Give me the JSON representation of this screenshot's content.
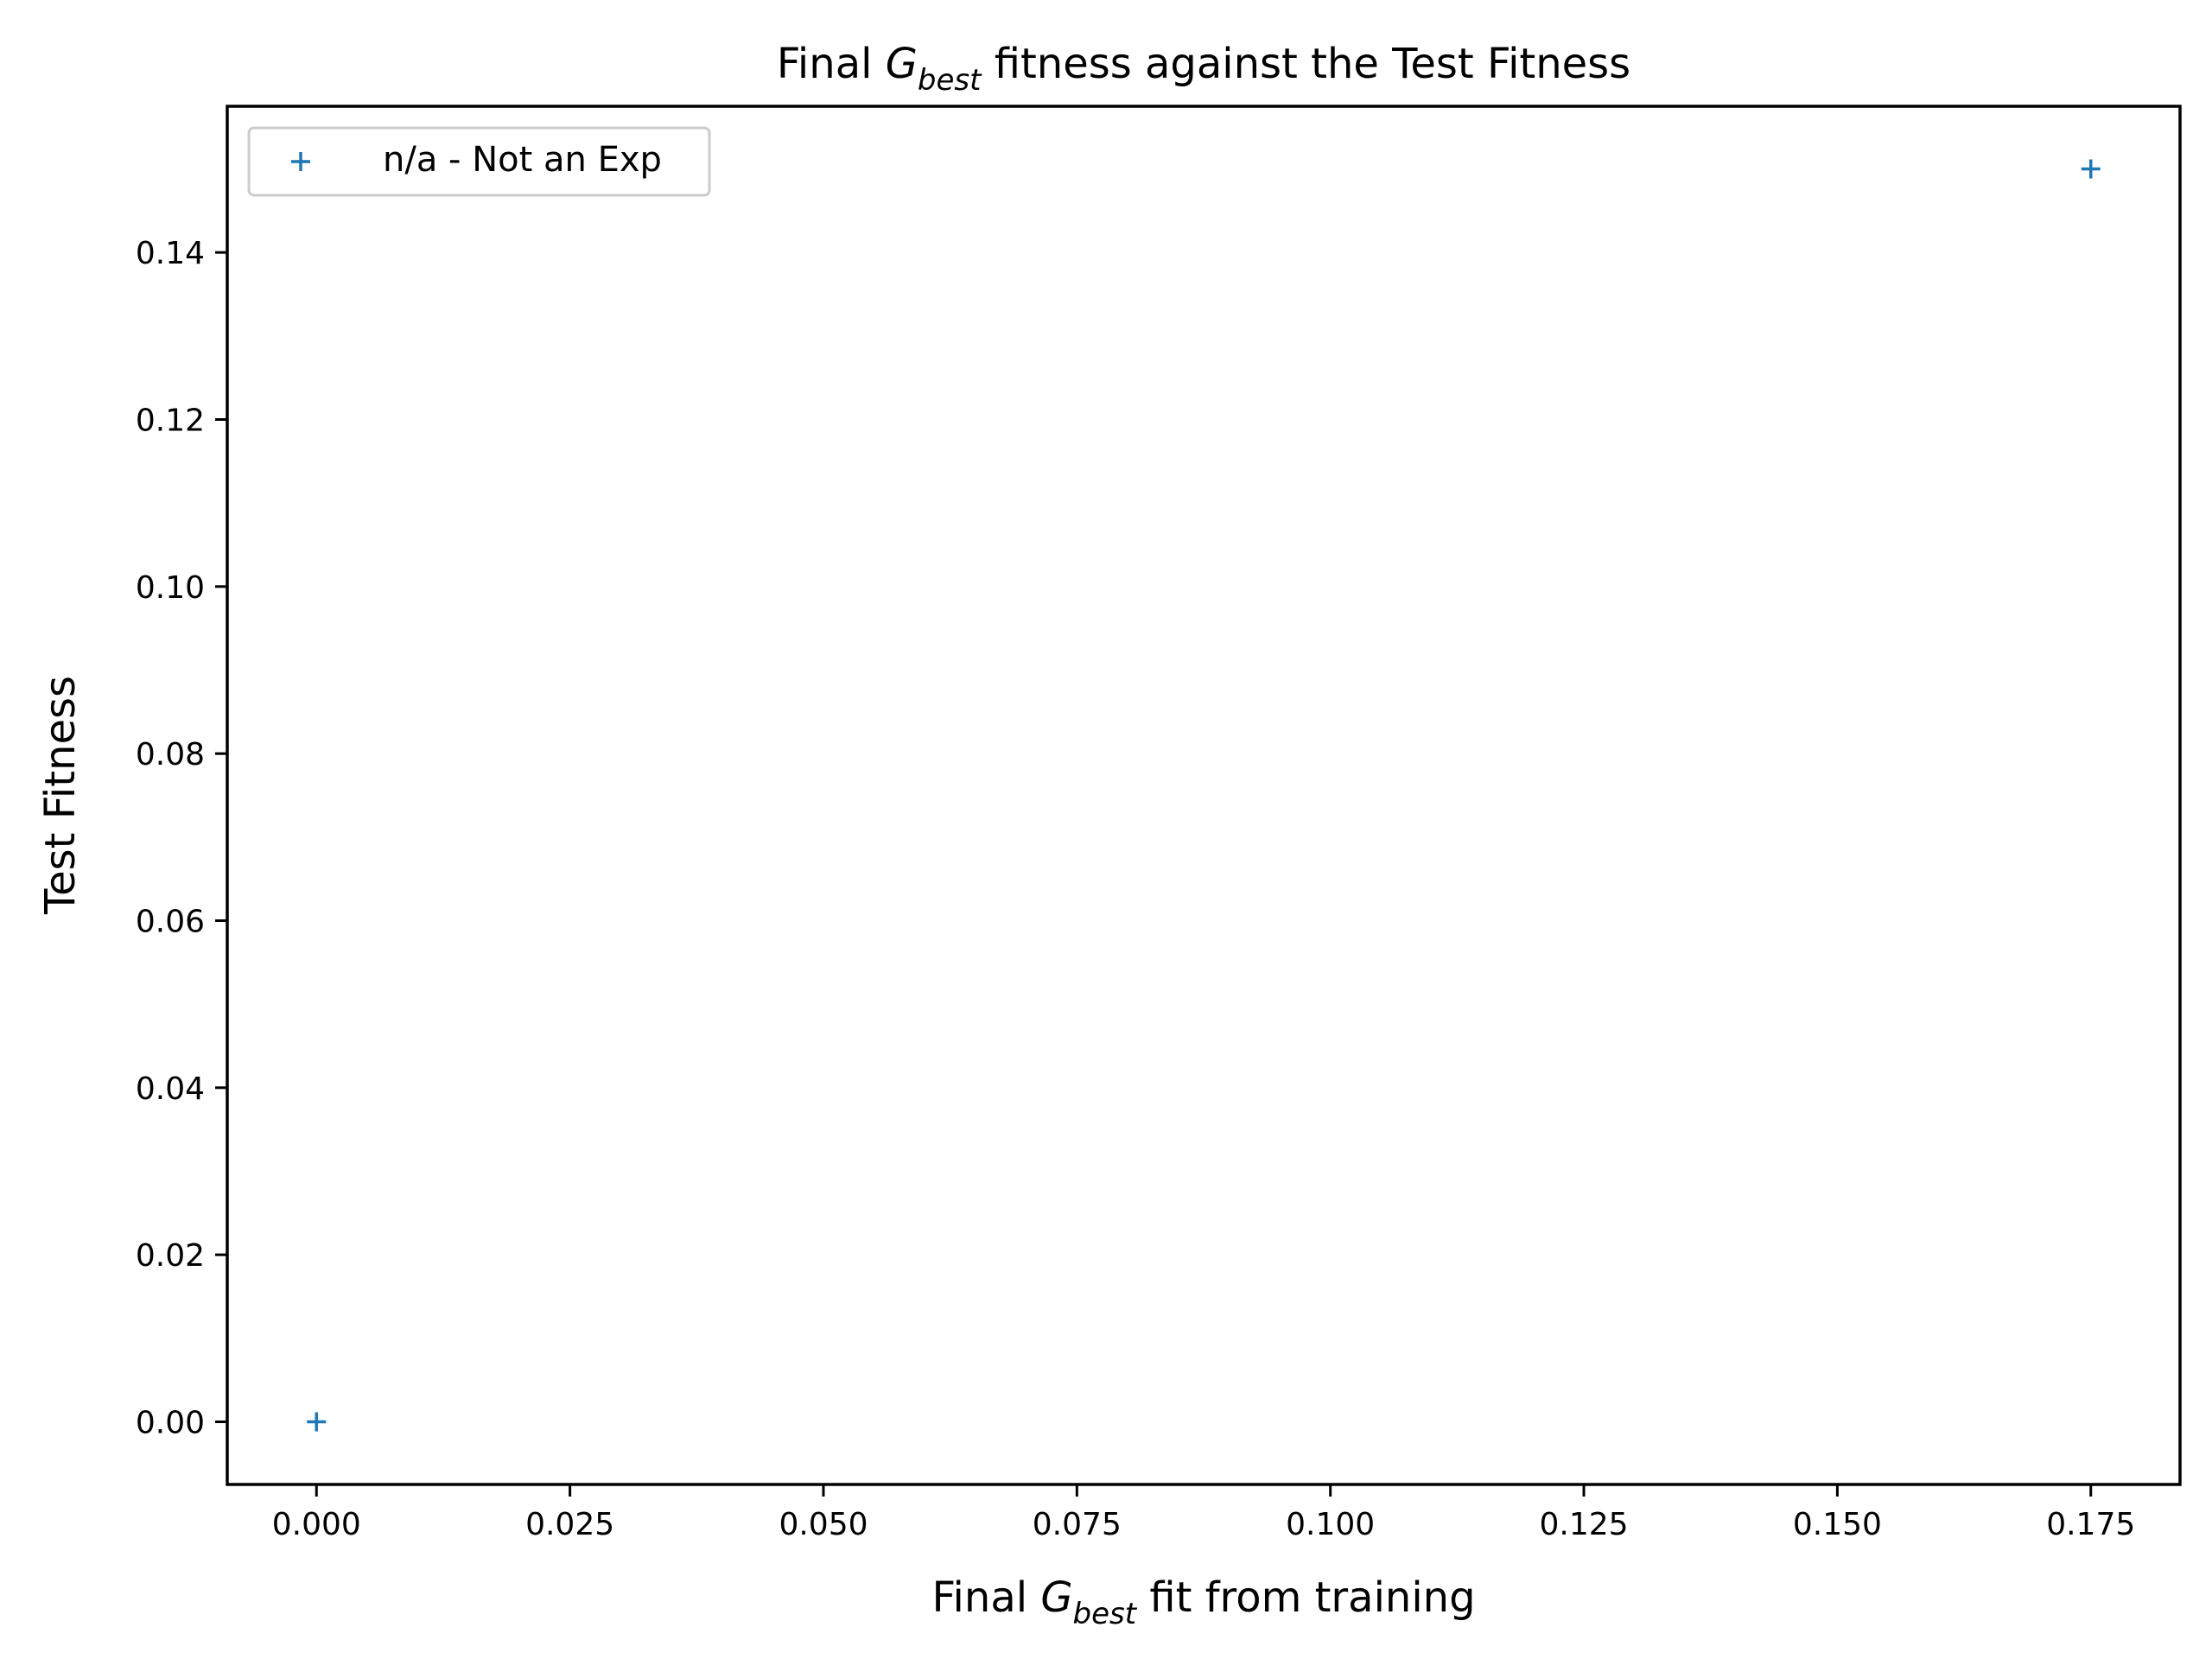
{
  "chart_data": {
    "type": "scatter",
    "title": {
      "prefix": "Final ",
      "var": "G",
      "sub": "best",
      "suffix": " fitness against the Test Fitness"
    },
    "xlabel": {
      "prefix": "Final ",
      "var": "G",
      "sub": "best",
      "suffix": " fit from training"
    },
    "ylabel": "Test Fitness",
    "xlim": [
      -0.0088,
      0.1838
    ],
    "ylim": [
      -0.0075,
      0.1575
    ],
    "xticks": [
      0.0,
      0.025,
      0.05,
      0.075,
      0.1,
      0.125,
      0.15,
      0.175
    ],
    "xtick_labels": [
      "0.000",
      "0.025",
      "0.050",
      "0.075",
      "0.100",
      "0.125",
      "0.150",
      "0.175"
    ],
    "yticks": [
      0.0,
      0.02,
      0.04,
      0.06,
      0.08,
      0.1,
      0.12,
      0.14
    ],
    "ytick_labels": [
      "0.00",
      "0.02",
      "0.04",
      "0.06",
      "0.08",
      "0.10",
      "0.12",
      "0.14"
    ],
    "grid": false,
    "legend_position": "top-left",
    "series": [
      {
        "name": "n/a - Not an Exp",
        "marker": "+",
        "color": "#1f77b4",
        "points": [
          {
            "x": 0.0,
            "y": 0.0
          },
          {
            "x": 0.175,
            "y": 0.15
          }
        ]
      }
    ]
  }
}
